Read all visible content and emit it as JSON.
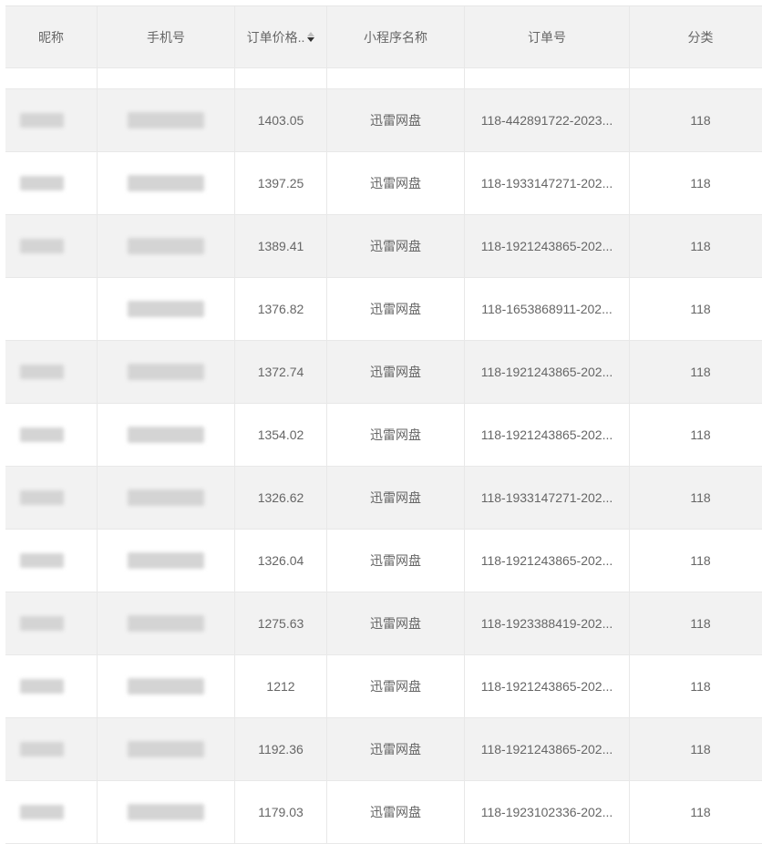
{
  "columns": [
    {
      "label": "昵称"
    },
    {
      "label": "手机号"
    },
    {
      "label": "订单价格..",
      "sortable": true,
      "sort": "descending"
    },
    {
      "label": "小程序名称"
    },
    {
      "label": "订单号"
    },
    {
      "label": "分类"
    }
  ],
  "rows": [
    {
      "price": "1403.05",
      "app": "迅雷网盘",
      "order": "118-442891722-2023...",
      "category": "118"
    },
    {
      "price": "1397.25",
      "app": "迅雷网盘",
      "order": "118-1933147271-202...",
      "category": "118"
    },
    {
      "price": "1389.41",
      "app": "迅雷网盘",
      "order": "118-1921243865-202...",
      "category": "118"
    },
    {
      "price": "1376.82",
      "app": "迅雷网盘",
      "order": "118-1653868911-202...",
      "category": "118"
    },
    {
      "price": "1372.74",
      "app": "迅雷网盘",
      "order": "118-1921243865-202...",
      "category": "118"
    },
    {
      "price": "1354.02",
      "app": "迅雷网盘",
      "order": "118-1921243865-202...",
      "category": "118"
    },
    {
      "price": "1326.62",
      "app": "迅雷网盘",
      "order": "118-1933147271-202...",
      "category": "118"
    },
    {
      "price": "1326.04",
      "app": "迅雷网盘",
      "order": "118-1921243865-202...",
      "category": "118"
    },
    {
      "price": "1275.63",
      "app": "迅雷网盘",
      "order": "118-1923388419-202...",
      "category": "118"
    },
    {
      "price": "1212",
      "app": "迅雷网盘",
      "order": "118-1921243865-202...",
      "category": "118"
    },
    {
      "price": "1192.36",
      "app": "迅雷网盘",
      "order": "118-1921243865-202...",
      "category": "118"
    },
    {
      "price": "1179.03",
      "app": "迅雷网盘",
      "order": "118-1923102336-202...",
      "category": "118"
    }
  ],
  "notes": {
    "nickname_phone_cells": "blurred"
  }
}
